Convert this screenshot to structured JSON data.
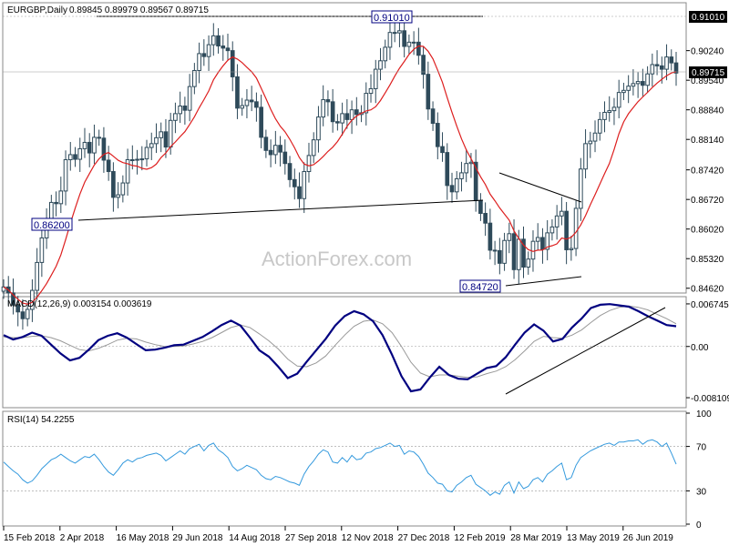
{
  "chart_data": [
    {
      "type": "candlestick",
      "panel": "price",
      "title": "EURGBP,Daily",
      "ohlc_header": "0.89845 0.89979 0.89567 0.89715",
      "watermark": "ActionForex.com",
      "ylim": [
        0.8455,
        0.9133
      ],
      "yticks": [
        "0.90240",
        "0.89540",
        "0.88840",
        "0.88140",
        "0.87420",
        "0.86720",
        "0.86020",
        "0.85320",
        "0.84620"
      ],
      "last_price": "0.89715",
      "high_tag": "0.91010",
      "annotations": [
        "0.91010",
        "0.86200",
        "0.84720"
      ],
      "close_series": [
        0.8465,
        0.8451,
        0.8422,
        0.8406,
        0.839,
        0.8412,
        0.8457,
        0.8523,
        0.8581,
        0.8621,
        0.8665,
        0.8662,
        0.8692,
        0.8766,
        0.8778,
        0.8767,
        0.8792,
        0.8807,
        0.8782,
        0.8819,
        0.8817,
        0.8765,
        0.8738,
        0.8677,
        0.8683,
        0.8711,
        0.8766,
        0.8765,
        0.8767,
        0.8768,
        0.8795,
        0.8804,
        0.8818,
        0.8832,
        0.8796,
        0.8859,
        0.8875,
        0.8893,
        0.8883,
        0.8939,
        0.8977,
        0.9017,
        0.901,
        0.9038,
        0.9059,
        0.9035,
        0.903,
        0.9024,
        0.8962,
        0.8888,
        0.8894,
        0.8907,
        0.8903,
        0.889,
        0.8819,
        0.8788,
        0.8778,
        0.88,
        0.8784,
        0.8757,
        0.8719,
        0.8702,
        0.8674,
        0.8738,
        0.8776,
        0.8813,
        0.8867,
        0.8908,
        0.8903,
        0.8856,
        0.8853,
        0.8875,
        0.8861,
        0.8884,
        0.8873,
        0.8877,
        0.8923,
        0.8934,
        0.898,
        0.9,
        0.9032,
        0.9067,
        0.9066,
        0.9071,
        0.9034,
        0.9044,
        0.9044,
        0.9013,
        0.8968,
        0.8886,
        0.8852,
        0.8797,
        0.8783,
        0.8705,
        0.869,
        0.8721,
        0.8735,
        0.8757,
        0.876,
        0.8669,
        0.8639,
        0.8616,
        0.8552,
        0.8551,
        0.8521,
        0.8575,
        0.8591,
        0.8506,
        0.8578,
        0.8512,
        0.8531,
        0.8573,
        0.8582,
        0.8554,
        0.8593,
        0.8607,
        0.8633,
        0.8644,
        0.8553,
        0.8556,
        0.8651,
        0.8744,
        0.8804,
        0.881,
        0.8829,
        0.8861,
        0.8878,
        0.8882,
        0.889,
        0.8925,
        0.893,
        0.894,
        0.8946,
        0.8951,
        0.8942,
        0.8969,
        0.8991,
        0.8988,
        0.898,
        0.9009,
        0.8995,
        0.8971
      ],
      "ma_type": "moving average",
      "ma_color": "#dd1f1f",
      "candle_color": "#2e4a5a",
      "xticks": [
        "15 Feb 2018",
        "2 Apr 2018",
        "16 May 2018",
        "29 Jun 2018",
        "14 Aug 2018",
        "27 Sep 2018",
        "12 Nov 2018",
        "27 Dec 2018",
        "12 Feb 2019",
        "28 Mar 2019",
        "13 May 2019",
        "26 Jun 2019"
      ]
    },
    {
      "type": "line",
      "panel": "macd",
      "title": "MACD(12,26,9) 0.003154 0.003619",
      "ylim": [
        -0.0094,
        0.0076
      ],
      "yticks": [
        "0.006745",
        "0.00",
        "-0.008109"
      ],
      "series": [
        {
          "name": "MACD",
          "color": "#000080",
          "values": [
            0.0018,
            0.0011,
            0.0015,
            0.0022,
            0.0017,
            0.0003,
            -0.0011,
            -0.0022,
            -0.0018,
            -0.0005,
            0.001,
            0.0017,
            0.0021,
            0.0014,
            0.0004,
            -0.0006,
            -0.0005,
            -0.0002,
            0.0002,
            0.0003,
            0.0009,
            0.0015,
            0.0024,
            0.0034,
            0.0041,
            0.0033,
            0.0014,
            -0.0006,
            -0.0016,
            -0.0032,
            -0.005,
            -0.0043,
            -0.0024,
            -0.0006,
            0.0012,
            0.0033,
            0.0048,
            0.0056,
            0.0051,
            0.004,
            0.0018,
            -0.0013,
            -0.0047,
            -0.0071,
            -0.0068,
            -0.0049,
            -0.0032,
            -0.0045,
            -0.0051,
            -0.0052,
            -0.0043,
            -0.0034,
            -0.0031,
            -0.0017,
            0.0003,
            0.0022,
            0.0035,
            0.0025,
            0.0008,
            0.0012,
            0.003,
            0.0044,
            0.0061,
            0.0066,
            0.0067,
            0.0065,
            0.0063,
            0.0056,
            0.0048,
            0.0041,
            0.0034,
            0.0032
          ]
        },
        {
          "name": "Signal",
          "color": "#999999",
          "values": [
            0.0015,
            0.0014,
            0.0014,
            0.0016,
            0.0017,
            0.0014,
            0.0009,
            0.0002,
            -0.0005,
            -0.0007,
            -0.0003,
            0.0003,
            0.001,
            0.0013,
            0.0012,
            0.0007,
            0.0003,
            0.0,
            0.0,
            0.0001,
            0.0004,
            0.0008,
            0.0014,
            0.0022,
            0.003,
            0.0034,
            0.003,
            0.002,
            0.0009,
            -0.0004,
            -0.002,
            -0.0031,
            -0.0032,
            -0.0026,
            -0.0015,
            0.0002,
            0.0018,
            0.0032,
            0.004,
            0.0042,
            0.0036,
            0.0022,
            0.0,
            -0.0025,
            -0.0042,
            -0.0048,
            -0.0045,
            -0.0045,
            -0.0047,
            -0.0049,
            -0.0048,
            -0.0043,
            -0.0039,
            -0.0032,
            -0.0021,
            -0.0007,
            0.0008,
            0.0016,
            0.0014,
            0.0013,
            0.0018,
            0.0026,
            0.0038,
            0.0049,
            0.0057,
            0.0062,
            0.0064,
            0.0062,
            0.0058,
            0.0051,
            0.0044,
            0.0036
          ]
        }
      ]
    },
    {
      "type": "line",
      "panel": "rsi",
      "title": "RSI(14) 54.2255",
      "ylim": [
        0,
        100
      ],
      "yticks": [
        "100",
        "70",
        "30",
        "0"
      ],
      "levels": [
        70,
        30
      ],
      "series": [
        {
          "name": "RSI",
          "color": "#3399dd",
          "values": [
            56,
            52,
            48,
            45,
            40,
            37,
            39,
            44,
            50,
            54,
            58,
            60,
            63,
            60,
            57,
            55,
            58,
            61,
            60,
            63,
            58,
            52,
            47,
            44,
            49,
            55,
            58,
            56,
            59,
            60,
            62,
            63,
            64,
            62,
            57,
            60,
            63,
            66,
            63,
            68,
            70,
            72,
            66,
            71,
            73,
            67,
            64,
            60,
            52,
            48,
            50,
            53,
            51,
            49,
            44,
            41,
            40,
            43,
            42,
            40,
            38,
            37,
            35,
            45,
            52,
            57,
            63,
            67,
            65,
            56,
            55,
            60,
            56,
            62,
            58,
            59,
            64,
            65,
            68,
            69,
            71,
            73,
            70,
            71,
            63,
            66,
            65,
            61,
            54,
            46,
            42,
            37,
            36,
            30,
            29,
            35,
            38,
            42,
            44,
            36,
            33,
            30,
            26,
            29,
            27,
            35,
            38,
            28,
            38,
            32,
            34,
            40,
            42,
            38,
            45,
            48,
            52,
            55,
            40,
            42,
            53,
            60,
            63,
            66,
            68,
            70,
            72,
            73,
            71,
            74,
            74,
            75,
            75,
            76,
            72,
            75,
            76,
            74,
            70,
            73,
            64,
            54
          ]
        }
      ]
    }
  ]
}
